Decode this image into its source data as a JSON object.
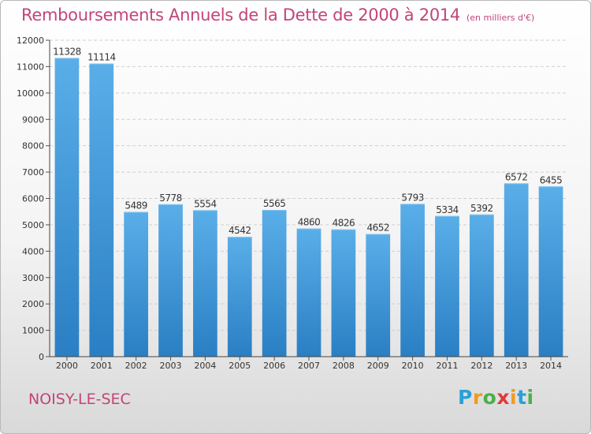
{
  "header": {
    "title": "Remboursements Annuels de la Dette de 2000 à 2014",
    "subtitle": "(en milliers d'€)"
  },
  "footer": {
    "commune": "NOISY-LE-SEC",
    "logo": {
      "letters": [
        "P",
        "r",
        "o",
        "x",
        "i",
        "t",
        "i"
      ],
      "colors": [
        "#2aa0d8",
        "#f29a1d",
        "#4bb04a",
        "#e03a3a",
        "#f29a1d",
        "#2aa0d8",
        "#4bb04a"
      ]
    }
  },
  "chart_data": {
    "type": "bar",
    "title": "Remboursements Annuels de la Dette de 2000 à 2014",
    "subtitle": "(en milliers d'€)",
    "xlabel": "",
    "ylabel": "",
    "categories": [
      "2000",
      "2001",
      "2002",
      "2003",
      "2004",
      "2005",
      "2006",
      "2007",
      "2008",
      "2009",
      "2010",
      "2011",
      "2012",
      "2013",
      "2014"
    ],
    "values": [
      11328,
      11114,
      5489,
      5778,
      5554,
      4542,
      5565,
      4860,
      4826,
      4652,
      5793,
      5334,
      5392,
      6572,
      6455
    ],
    "ylim": [
      0,
      12000
    ],
    "yticks": [
      0,
      1000,
      2000,
      3000,
      4000,
      5000,
      6000,
      7000,
      8000,
      9000,
      10000,
      11000,
      12000
    ],
    "grid": true,
    "legend": "none",
    "bar_color_top": "#5aaee8",
    "bar_color_bottom": "#2a7fc4"
  }
}
